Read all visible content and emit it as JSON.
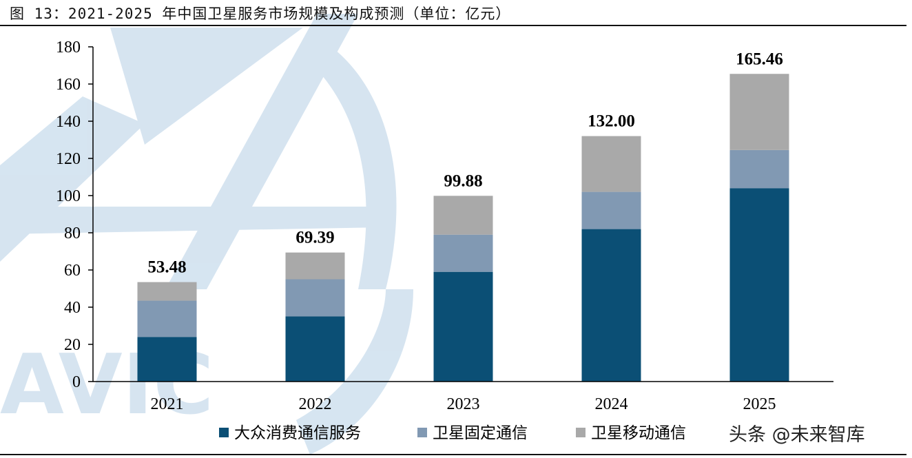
{
  "figure_title": "图 13：2021-2025 年中国卫星服务市场规模及构成预测（单位：亿元）",
  "watermark_logo_text": "AVIC",
  "source_watermark": "头条 @未来智库",
  "colors": {
    "series_1": "#0b4f75",
    "series_2": "#8199b3",
    "series_3": "#a9a9a9",
    "watermark": "#cfe0ee"
  },
  "chart_data": {
    "type": "bar",
    "stacked": true,
    "categories": [
      "2021",
      "2022",
      "2023",
      "2024",
      "2025"
    ],
    "series": [
      {
        "name": "大众消费通信服务",
        "values": [
          24,
          35,
          59,
          82,
          104
        ]
      },
      {
        "name": "卫星固定通信",
        "values": [
          19.5,
          20,
          20,
          20,
          20.5
        ]
      },
      {
        "name": "卫星移动通信",
        "values": [
          9.98,
          14.39,
          20.88,
          30,
          40.96
        ]
      }
    ],
    "totals": [
      "53.48",
      "69.39",
      "99.88",
      "132.00",
      "165.46"
    ],
    "ylim": [
      0,
      180
    ],
    "yticks": [
      0,
      20,
      40,
      60,
      80,
      100,
      120,
      140,
      160,
      180
    ],
    "grid": false,
    "legend_position": "bottom"
  }
}
